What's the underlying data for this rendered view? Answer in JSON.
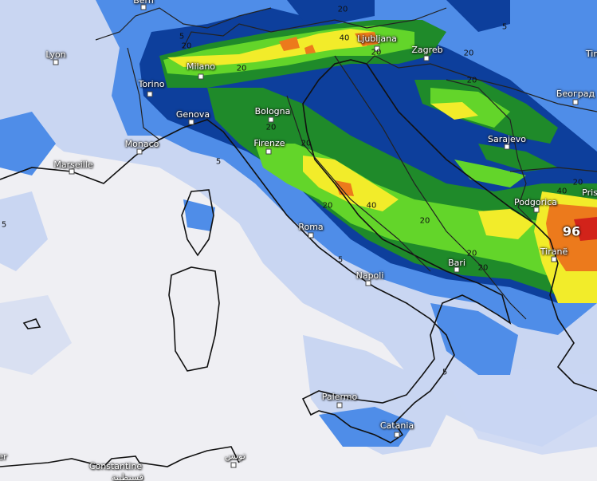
{
  "map": {
    "variable": "accumulated precipitation",
    "colors": {
      "background": "#efeff3",
      "light_blue": "#c9d6f2",
      "blue": "#4f8de8",
      "dark_blue": "#0d3f9c",
      "green": "#1f8a2a",
      "light_green": "#63d52a",
      "yellow": "#f2ec2a",
      "orange": "#ec7a1c",
      "red": "#d2231a"
    },
    "cities": [
      "Bern",
      "Lyon",
      "Torino",
      "Milano",
      "Genova",
      "Monaco",
      "Marseille",
      "Bologna",
      "Firenze",
      "Roma",
      "Napoli",
      "Bari",
      "Palermo",
      "Catania",
      "Constantine",
      "قسنطينة",
      "تونس",
      "Ljubljana",
      "Zagreb",
      "Sarajevo",
      "Београд",
      "Podgorica",
      "Tiranë",
      "Tim",
      "Pris",
      "er"
    ],
    "contour_labels": [
      "5",
      "20",
      "20",
      "40",
      "20",
      "5",
      "20",
      "20",
      "20",
      "20",
      "20",
      "40",
      "20",
      "20",
      "20",
      "5",
      "5",
      "5",
      "5",
      "20",
      "40",
      "20"
    ],
    "max_value": "96"
  }
}
